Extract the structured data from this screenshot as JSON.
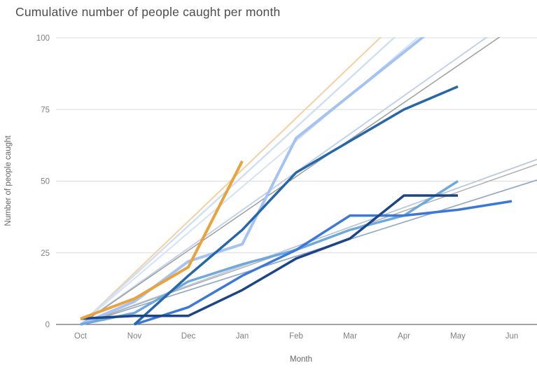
{
  "title": "Cumulative number of people caught per month",
  "chart_data": {
    "type": "line",
    "title": "Cumulative number of people caught per month",
    "xlabel": "Month",
    "ylabel": "Number of people caught",
    "categories": [
      "Oct",
      "Nov",
      "Dec",
      "Jan",
      "Feb",
      "Mar",
      "Apr",
      "May",
      "Jun"
    ],
    "ylim": [
      0,
      100
    ],
    "yticks": [
      0,
      25,
      50,
      75,
      100
    ],
    "grid": true,
    "legend_position": "none",
    "series": [
      {
        "name": "pale-blue-line",
        "color": "#a4c2f4",
        "width": 4,
        "values": [
          0,
          8,
          22,
          28,
          65,
          80,
          95,
          110,
          null
        ]
      },
      {
        "name": "light-blue-line",
        "color": "#6fa8dc",
        "width": 3.5,
        "values": [
          0,
          4,
          15,
          21,
          26,
          33,
          38,
          50,
          null
        ]
      },
      {
        "name": "medium-blue-line",
        "color": "#3c78d8",
        "width": 3.5,
        "values": [
          null,
          0,
          6,
          17,
          26,
          38,
          38,
          40,
          43
        ]
      },
      {
        "name": "steel-blue-line",
        "color": "#2766a8",
        "width": 3.5,
        "values": [
          null,
          0,
          17,
          33,
          53,
          64,
          75,
          83,
          null
        ]
      },
      {
        "name": "navy-line",
        "color": "#1c4587",
        "width": 3.5,
        "values": [
          2,
          3,
          3,
          12,
          23,
          30,
          45,
          45,
          null
        ]
      },
      {
        "name": "orange-line",
        "color": "#e8a33c",
        "width": 4,
        "values": [
          2,
          9,
          20,
          57,
          null,
          null,
          null,
          null,
          null
        ]
      }
    ],
    "trendlines": [
      {
        "name": "tan-trendline",
        "color": "#f6cfa0",
        "width": 2,
        "slope_per_month": 18.0,
        "start_value": 0
      },
      {
        "name": "pale-blue-trendline-1",
        "color": "#cfe0f3",
        "width": 2.5,
        "slope_per_month": 17.2,
        "start_value": 0
      },
      {
        "name": "pale-blue-trendline-2",
        "color": "#d5e2f2",
        "width": 2,
        "slope_per_month": 16.0,
        "start_value": 0
      },
      {
        "name": "periwinkle-trendline",
        "color": "#c3d2ea",
        "width": 2,
        "slope_per_month": 13.3,
        "start_value": 0
      },
      {
        "name": "gray-trendline-steep",
        "color": "#9e9e9e",
        "width": 1.5,
        "slope_per_month": 12.9,
        "start_value": 0
      },
      {
        "name": "pale-trendline-flat",
        "color": "#b6c6dc",
        "width": 1.7,
        "slope_per_month": 6.8,
        "start_value": 0
      },
      {
        "name": "gray-trendline-flat",
        "color": "#ababab",
        "width": 1.4,
        "slope_per_month": 6.6,
        "start_value": 0
      },
      {
        "name": "steel-trendline-flat",
        "color": "#93a9c6",
        "width": 1.7,
        "slope_per_month": 5.95,
        "start_value": 0
      }
    ],
    "axis_colors": {
      "gridline": "#dcdcdc",
      "baseline": "#4a4a4a",
      "tick_text": "#808080",
      "title_text": "#4d4d4d"
    }
  }
}
